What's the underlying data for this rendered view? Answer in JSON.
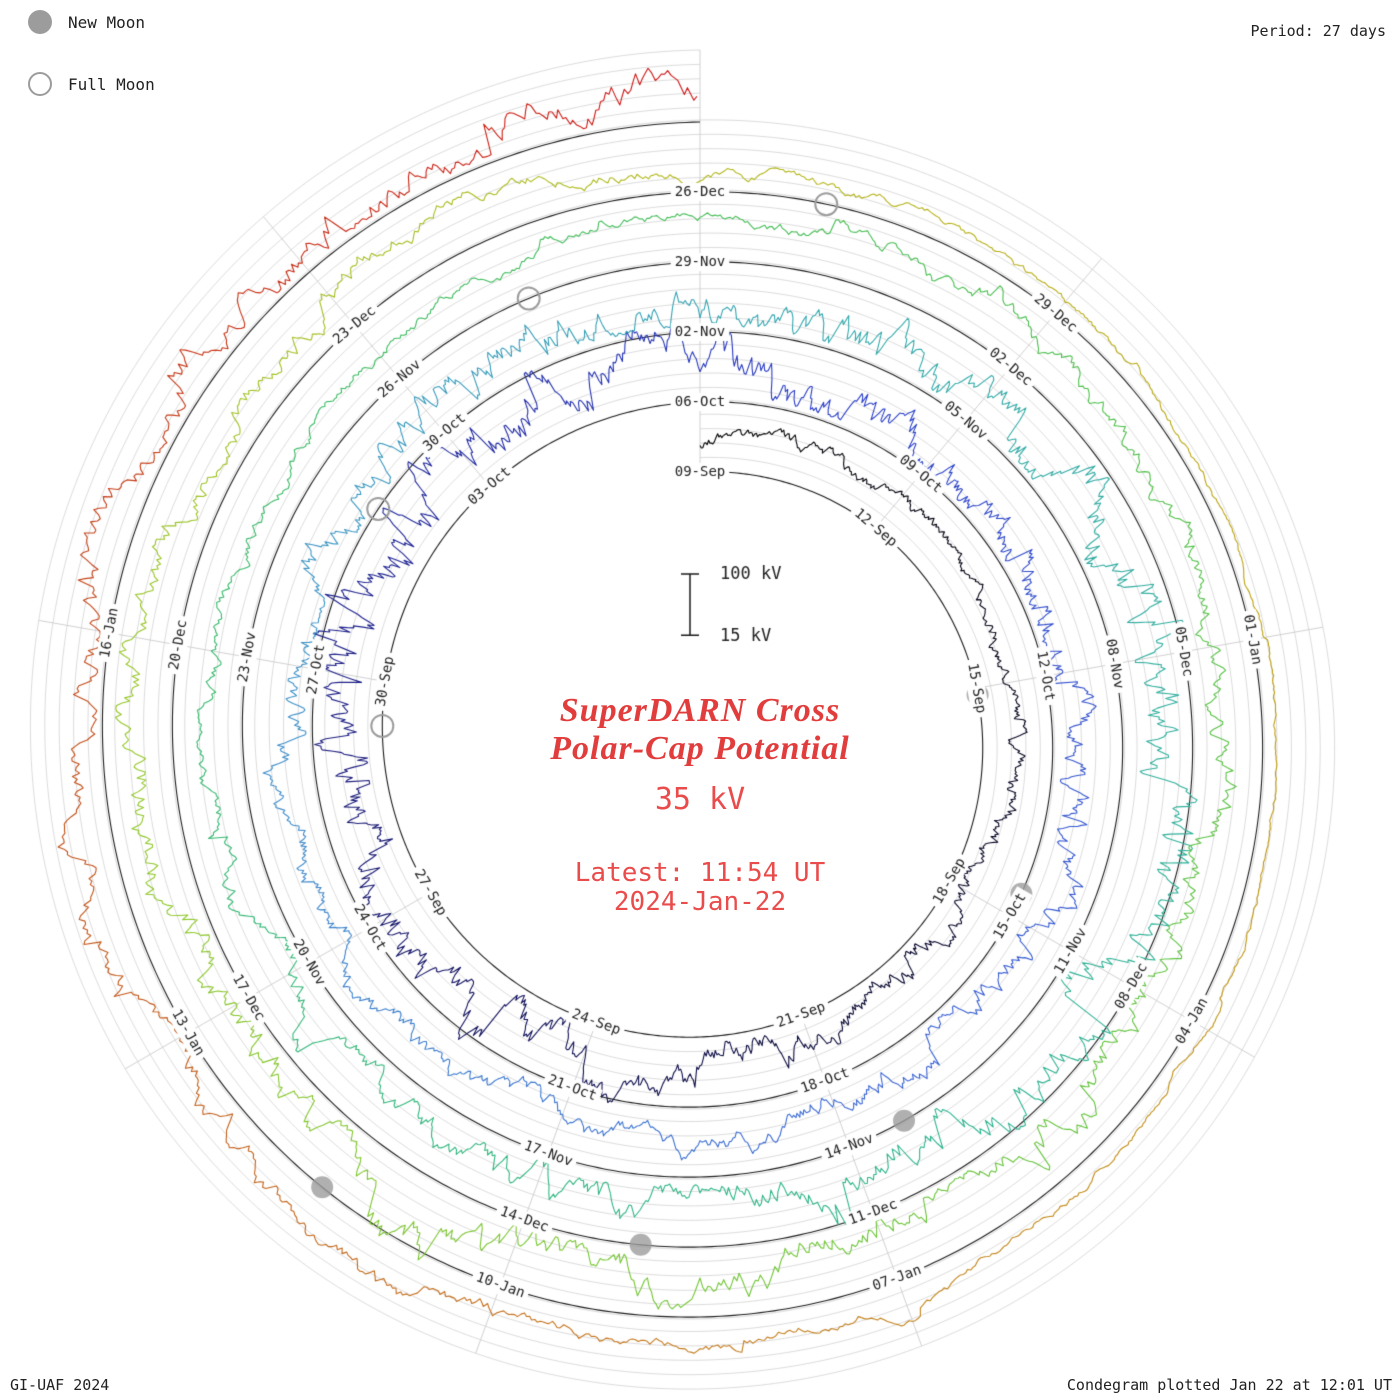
{
  "legend": {
    "new_moon_label": "New Moon",
    "full_moon_label": "Full Moon"
  },
  "annotations": {
    "period": "Period: 27 days",
    "credit": "GI-UAF 2024",
    "plotted": "Condegram plotted Jan 22 at 12:01 UT"
  },
  "center": {
    "title_line1": "SuperDARN Cross",
    "title_line2": "Polar-Cap Potential",
    "current_value": "35 kV",
    "latest_time": "Latest: 11:54 UT",
    "latest_date": "2024-Jan-22"
  },
  "colors": {
    "title_red": "#e23d3d",
    "value_red": "#ea4c4c",
    "moon_gray": "#9c9c9c",
    "grid_gray": "#cccccc",
    "spoke_gray": "#c4c4c4",
    "axis_dark": "#1a1a1a",
    "label_text": "#222222"
  },
  "chart_data": {
    "type": "line",
    "subtype": "condegram-spiral",
    "title": "SuperDARN Cross Polar-Cap Potential",
    "period_days": 27,
    "revolutions": 5,
    "total_days": 135,
    "start_label": "09-Sep",
    "end_label": "2024-Jan-22",
    "unit": "kV",
    "latest_value_kv": 35,
    "scale": {
      "top_label": "100 kV",
      "bottom_label": "15 kV",
      "top_kv": 100,
      "bottom_kv": 15
    },
    "grid_kv": [
      20,
      40,
      60,
      80,
      100
    ],
    "tick_interval_days": 3,
    "value_range_kv": [
      8,
      112
    ],
    "date_ticks": [
      {
        "t": 0,
        "label": "09-Sep"
      },
      {
        "t": 3,
        "label": "12-Sep"
      },
      {
        "t": 6,
        "label": "15-Sep"
      },
      {
        "t": 9,
        "label": "18-Sep"
      },
      {
        "t": 12,
        "label": "21-Sep"
      },
      {
        "t": 15,
        "label": "24-Sep"
      },
      {
        "t": 18,
        "label": "27-Sep"
      },
      {
        "t": 21,
        "label": "30-Sep"
      },
      {
        "t": 24,
        "label": "03-Oct"
      },
      {
        "t": 27,
        "label": "06-Oct"
      },
      {
        "t": 30,
        "label": "09-Oct"
      },
      {
        "t": 33,
        "label": "12-Oct"
      },
      {
        "t": 36,
        "label": "15-Oct"
      },
      {
        "t": 39,
        "label": "18-Oct"
      },
      {
        "t": 42,
        "label": "21-Oct"
      },
      {
        "t": 45,
        "label": "24-Oct"
      },
      {
        "t": 48,
        "label": "27-Oct"
      },
      {
        "t": 51,
        "label": "30-Oct"
      },
      {
        "t": 54,
        "label": "02-Nov"
      },
      {
        "t": 57,
        "label": "05-Nov"
      },
      {
        "t": 60,
        "label": "08-Nov"
      },
      {
        "t": 63,
        "label": "11-Nov"
      },
      {
        "t": 66,
        "label": "14-Nov"
      },
      {
        "t": 69,
        "label": "17-Nov"
      },
      {
        "t": 72,
        "label": "20-Nov"
      },
      {
        "t": 75,
        "label": "23-Nov"
      },
      {
        "t": 78,
        "label": "26-Nov"
      },
      {
        "t": 81,
        "label": "29-Nov"
      },
      {
        "t": 84,
        "label": "02-Dec"
      },
      {
        "t": 87,
        "label": "05-Dec"
      },
      {
        "t": 90,
        "label": "08-Dec"
      },
      {
        "t": 93,
        "label": "11-Dec"
      },
      {
        "t": 96,
        "label": "14-Dec"
      },
      {
        "t": 99,
        "label": "17-Dec"
      },
      {
        "t": 102,
        "label": "20-Dec"
      },
      {
        "t": 105,
        "label": "23-Dec"
      },
      {
        "t": 108,
        "label": "26-Dec"
      },
      {
        "t": 111,
        "label": "29-Dec"
      },
      {
        "t": 114,
        "label": "01-Jan"
      },
      {
        "t": 117,
        "label": "04-Jan"
      },
      {
        "t": 120,
        "label": "07-Jan"
      },
      {
        "t": 123,
        "label": "10-Jan"
      },
      {
        "t": 126,
        "label": "13-Jan"
      },
      {
        "t": 129,
        "label": "16-Jan"
      }
    ],
    "moons": {
      "new_moon_t_days": [
        6.1,
        35.7,
        65.4,
        95.0,
        124.5
      ],
      "full_moon_t_days": [
        20.4,
        49.9,
        79.4,
        109.0
      ]
    },
    "trace_color_stops": [
      [
        0.0,
        "#000000"
      ],
      [
        0.08,
        "#070730"
      ],
      [
        0.15,
        "#1c1c80"
      ],
      [
        0.21,
        "#2a3ec8"
      ],
      [
        0.28,
        "#3a62d4"
      ],
      [
        0.35,
        "#3e8fcb"
      ],
      [
        0.41,
        "#33a8ad"
      ],
      [
        0.48,
        "#2cb38f"
      ],
      [
        0.55,
        "#35b96e"
      ],
      [
        0.62,
        "#49be4d"
      ],
      [
        0.69,
        "#6cc538"
      ],
      [
        0.75,
        "#94c728"
      ],
      [
        0.8,
        "#b2b81c"
      ],
      [
        0.85,
        "#bf9e12"
      ],
      [
        0.9,
        "#c47a1c"
      ],
      [
        0.95,
        "#c24b16"
      ],
      [
        1.0,
        "#cd1414"
      ]
    ],
    "noise_seed": 20240122,
    "samples_per_day": 48
  }
}
